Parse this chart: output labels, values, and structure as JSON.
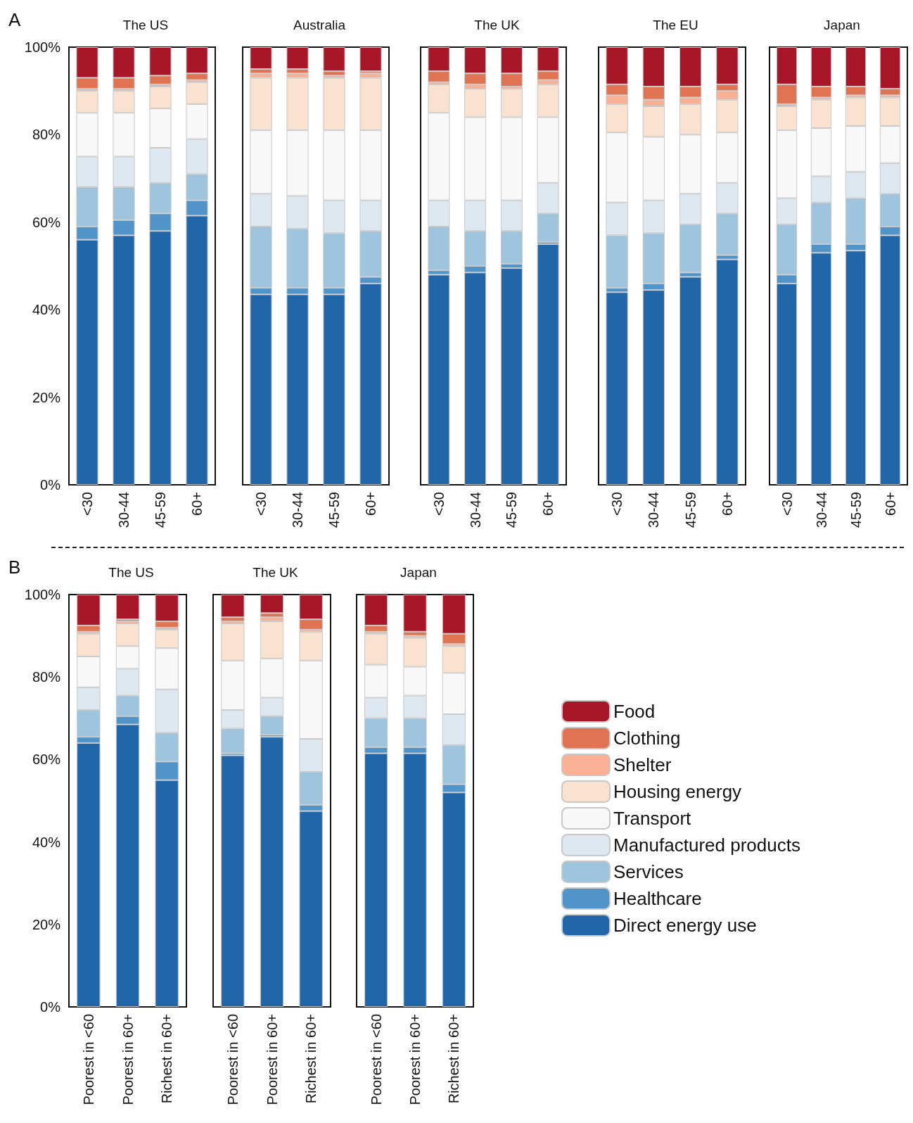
{
  "chart_data": [
    {
      "type": "bar",
      "stacked": true,
      "title": "The US",
      "annotations": [
        "A"
      ],
      "categories": [
        "<30",
        "30-44",
        "45-59",
        "60+"
      ],
      "ylim": [
        0,
        100
      ],
      "yticks": [
        {
          "value": 0,
          "label": "0%"
        },
        {
          "value": 20,
          "label": "20%"
        },
        {
          "value": 40,
          "label": "40%"
        },
        {
          "value": 60,
          "label": "60%"
        },
        {
          "value": 80,
          "label": "80%"
        },
        {
          "value": 100,
          "label": "100%"
        }
      ],
      "grid": false,
      "series": [
        {
          "color": "#2166a8",
          "values": [
            56,
            57,
            58,
            61.5
          ]
        },
        {
          "color": "#5094c9",
          "values": [
            3,
            3.5,
            4,
            3.5
          ]
        },
        {
          "color": "#9fc4de",
          "values": [
            9,
            7.5,
            7,
            6
          ]
        },
        {
          "color": "#dde8f1",
          "values": [
            7,
            7,
            8,
            8
          ]
        },
        {
          "color": "#f8f8f8",
          "values": [
            10,
            10,
            9,
            8
          ]
        },
        {
          "color": "#f9e2d0",
          "values": [
            5,
            5,
            5,
            5
          ]
        },
        {
          "color": "#f9b094",
          "values": [
            0.5,
            0.5,
            0.5,
            0.5
          ]
        },
        {
          "color": "#e07452",
          "values": [
            2.5,
            2.5,
            2,
            1.5
          ]
        },
        {
          "color": "#a81728",
          "values": [
            7,
            7,
            6.5,
            6
          ]
        }
      ]
    },
    {
      "type": "bar",
      "stacked": true,
      "title": "Australia",
      "categories": [
        "<30",
        "30-44",
        "45-59",
        "60+"
      ],
      "ylim": [
        0,
        100
      ],
      "tick_labels": "x",
      "grid": false,
      "series": [
        {
          "color": "#2166a8",
          "values": [
            43.5,
            43.5,
            43.5,
            46
          ]
        },
        {
          "color": "#5094c9",
          "values": [
            1.5,
            1.5,
            1.5,
            1.5
          ]
        },
        {
          "color": "#9fc4de",
          "values": [
            14,
            13.5,
            12.5,
            10.5
          ]
        },
        {
          "color": "#dde8f1",
          "values": [
            7.5,
            7.5,
            7.5,
            7
          ]
        },
        {
          "color": "#f8f8f8",
          "values": [
            14.5,
            15,
            16,
            16
          ]
        },
        {
          "color": "#f9e2d0",
          "values": [
            12,
            12,
            12,
            12
          ]
        },
        {
          "color": "#f9b094",
          "values": [
            1,
            1,
            0.5,
            1
          ]
        },
        {
          "color": "#e07452",
          "values": [
            1,
            1,
            1,
            0.5
          ]
        },
        {
          "color": "#a81728",
          "values": [
            5,
            5,
            5.5,
            5.5
          ]
        }
      ]
    },
    {
      "type": "bar",
      "stacked": true,
      "title": "The UK",
      "categories": [
        "<30",
        "30-44",
        "45-59",
        "60+"
      ],
      "ylim": [
        0,
        100
      ],
      "tick_labels": "x",
      "grid": false,
      "series": [
        {
          "color": "#2166a8",
          "values": [
            48,
            48.5,
            49.5,
            55
          ]
        },
        {
          "color": "#5094c9",
          "values": [
            1,
            1.5,
            1,
            0.5
          ]
        },
        {
          "color": "#9fc4de",
          "values": [
            10,
            8,
            7.5,
            6.5
          ]
        },
        {
          "color": "#dde8f1",
          "values": [
            6,
            7,
            7,
            7
          ]
        },
        {
          "color": "#f8f8f8",
          "values": [
            20,
            19,
            19,
            15
          ]
        },
        {
          "color": "#f9e2d0",
          "values": [
            6.5,
            6.5,
            6.5,
            7.5
          ]
        },
        {
          "color": "#f9b094",
          "values": [
            0.5,
            1,
            0.5,
            1
          ]
        },
        {
          "color": "#e07452",
          "values": [
            2.5,
            2.5,
            3,
            2
          ]
        },
        {
          "color": "#a81728",
          "values": [
            5.5,
            6,
            6,
            5.5
          ]
        }
      ]
    },
    {
      "type": "bar",
      "stacked": true,
      "title": "The EU",
      "categories": [
        "<30",
        "30-44",
        "45-59",
        "60+"
      ],
      "ylim": [
        0,
        100
      ],
      "tick_labels": "x",
      "grid": false,
      "series": [
        {
          "color": "#2166a8",
          "values": [
            44,
            44.5,
            47.5,
            51.5
          ]
        },
        {
          "color": "#5094c9",
          "values": [
            1,
            1.5,
            1,
            1
          ]
        },
        {
          "color": "#9fc4de",
          "values": [
            12,
            11.5,
            11,
            9.5
          ]
        },
        {
          "color": "#dde8f1",
          "values": [
            7.5,
            7.5,
            7,
            7
          ]
        },
        {
          "color": "#f8f8f8",
          "values": [
            16,
            14.5,
            13.5,
            11.5
          ]
        },
        {
          "color": "#f9e2d0",
          "values": [
            6.5,
            7,
            7,
            7.5
          ]
        },
        {
          "color": "#f9b094",
          "values": [
            2,
            1.5,
            1.5,
            2
          ]
        },
        {
          "color": "#e07452",
          "values": [
            2.5,
            3,
            2.5,
            1.5
          ]
        },
        {
          "color": "#a81728",
          "values": [
            8.5,
            9,
            9,
            8.5
          ]
        }
      ]
    },
    {
      "type": "bar",
      "stacked": true,
      "title": "Japan",
      "categories": [
        "<30",
        "30-44",
        "45-59",
        "60+"
      ],
      "ylim": [
        0,
        100
      ],
      "tick_labels": "x",
      "grid": false,
      "series": [
        {
          "color": "#2166a8",
          "values": [
            46,
            53,
            53.5,
            57
          ]
        },
        {
          "color": "#5094c9",
          "values": [
            2,
            2,
            1.5,
            2
          ]
        },
        {
          "color": "#9fc4de",
          "values": [
            11.5,
            9.5,
            10.5,
            7.5
          ]
        },
        {
          "color": "#dde8f1",
          "values": [
            6,
            6,
            6,
            7
          ]
        },
        {
          "color": "#f8f8f8",
          "values": [
            15.5,
            11,
            10.5,
            8.5
          ]
        },
        {
          "color": "#f9e2d0",
          "values": [
            5.5,
            6.5,
            6.5,
            6.5
          ]
        },
        {
          "color": "#f9b094",
          "values": [
            0.5,
            0.5,
            0.5,
            0.5
          ]
        },
        {
          "color": "#e07452",
          "values": [
            4.5,
            2.5,
            2,
            1.5
          ]
        },
        {
          "color": "#a81728",
          "values": [
            8.5,
            9,
            9,
            9.5
          ]
        }
      ]
    },
    {
      "type": "bar",
      "stacked": true,
      "title": "The US",
      "annotations": [
        "B"
      ],
      "categories": [
        "Poorest in <60",
        "Poorest in 60+",
        "Richest in 60+"
      ],
      "ylim": [
        0,
        100
      ],
      "yticks": [
        {
          "value": 0,
          "label": "0%"
        },
        {
          "value": 20,
          "label": "20%"
        },
        {
          "value": 40,
          "label": "40%"
        },
        {
          "value": 60,
          "label": "60%"
        },
        {
          "value": 80,
          "label": "80%"
        },
        {
          "value": 100,
          "label": "100%"
        }
      ],
      "grid": false,
      "series": [
        {
          "color": "#2166a8",
          "values": [
            64,
            68.5,
            55
          ]
        },
        {
          "color": "#5094c9",
          "values": [
            1.5,
            2,
            4.5
          ]
        },
        {
          "color": "#9fc4de",
          "values": [
            6.5,
            5,
            7
          ]
        },
        {
          "color": "#dde8f1",
          "values": [
            5.5,
            6.5,
            10.5
          ]
        },
        {
          "color": "#f8f8f8",
          "values": [
            7.5,
            5.5,
            10
          ]
        },
        {
          "color": "#f9e2d0",
          "values": [
            5.5,
            5.5,
            4.5
          ]
        },
        {
          "color": "#f9b094",
          "values": [
            0.5,
            0.5,
            0.5
          ]
        },
        {
          "color": "#e07452",
          "values": [
            1.5,
            0.5,
            1.5
          ]
        },
        {
          "color": "#a81728",
          "values": [
            7.5,
            6,
            6.5
          ]
        }
      ]
    },
    {
      "type": "bar",
      "stacked": true,
      "title": "The UK",
      "categories": [
        "Poorest in <60",
        "Poorest in 60+",
        "Richest in 60+"
      ],
      "ylim": [
        0,
        100
      ],
      "tick_labels": "x",
      "grid": false,
      "series": [
        {
          "color": "#2166a8",
          "values": [
            61,
            65.5,
            47.5
          ]
        },
        {
          "color": "#5094c9",
          "values": [
            0.5,
            0.5,
            1.5
          ]
        },
        {
          "color": "#9fc4de",
          "values": [
            6,
            4.5,
            8
          ]
        },
        {
          "color": "#dde8f1",
          "values": [
            4.5,
            4.5,
            8
          ]
        },
        {
          "color": "#f8f8f8",
          "values": [
            12,
            9.5,
            19
          ]
        },
        {
          "color": "#f9e2d0",
          "values": [
            9,
            9,
            7
          ]
        },
        {
          "color": "#f9b094",
          "values": [
            0.5,
            1,
            0.5
          ]
        },
        {
          "color": "#e07452",
          "values": [
            1,
            1,
            2.5
          ]
        },
        {
          "color": "#a81728",
          "values": [
            5.5,
            4.5,
            6
          ]
        }
      ]
    },
    {
      "type": "bar",
      "stacked": true,
      "title": "Japan",
      "categories": [
        "Poorest in <60",
        "Poorest in 60+",
        "Richest in 60+"
      ],
      "ylim": [
        0,
        100
      ],
      "tick_labels": "x",
      "grid": false,
      "legend": "right",
      "series": [
        {
          "name": "Direct energy use",
          "color": "#2166a8",
          "values": [
            61.5,
            61.5,
            52
          ]
        },
        {
          "name": "Healthcare",
          "color": "#5094c9",
          "values": [
            1.5,
            1.5,
            2
          ]
        },
        {
          "name": "Services",
          "color": "#9fc4de",
          "values": [
            7,
            7,
            9.5
          ]
        },
        {
          "name": "Manufactured products",
          "color": "#dde8f1",
          "values": [
            5,
            5.5,
            7.5
          ]
        },
        {
          "name": "Transport",
          "color": "#f8f8f8",
          "values": [
            8,
            7,
            10
          ]
        },
        {
          "name": "Housing energy",
          "color": "#f9e2d0",
          "values": [
            7.5,
            7,
            6.5
          ]
        },
        {
          "name": "Shelter",
          "color": "#f9b094",
          "values": [
            0.5,
            0.5,
            0.5
          ]
        },
        {
          "name": "Clothing",
          "color": "#e07452",
          "values": [
            1.5,
            1,
            2.5
          ]
        },
        {
          "name": "Food",
          "color": "#a81728",
          "values": [
            7.5,
            9,
            9.5
          ]
        }
      ]
    }
  ]
}
